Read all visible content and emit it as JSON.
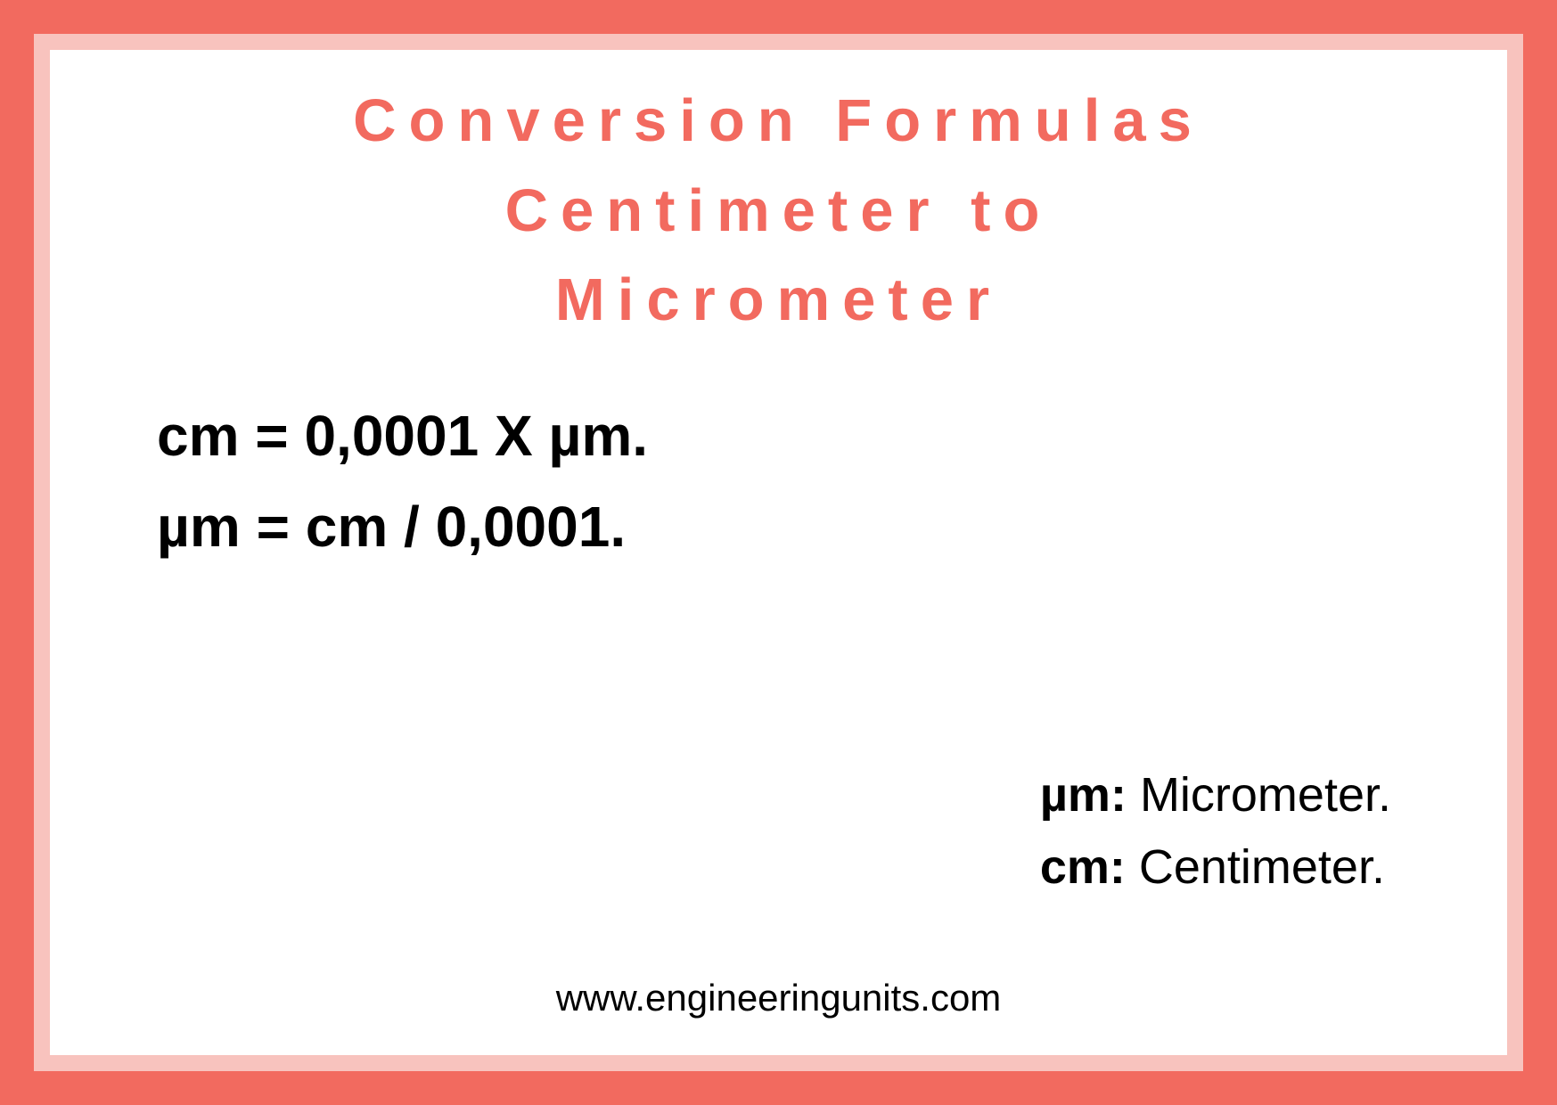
{
  "colors": {
    "outer_border": "#f26a5f",
    "inner_border": "#f8c3be",
    "background": "#ffffff",
    "title_color": "#f26a5f",
    "text_color": "#000000"
  },
  "title": {
    "line1": "Conversion Formulas",
    "line2": "Centimeter to",
    "line3": "Micrometer",
    "fontsize": 67,
    "letter_spacing": 14,
    "font_weight": 700
  },
  "formulas": {
    "line1": "cm = 0,0001 X µm.",
    "line2": "µm =  cm / 0,0001.",
    "fontsize": 64,
    "font_weight": 700
  },
  "legend": {
    "item1_symbol": "µm:",
    "item1_text": " Micrometer.",
    "item2_symbol": "cm:",
    "item2_text": " Centimeter.",
    "fontsize": 54
  },
  "footer": {
    "text": "www.engineeringunits.com",
    "fontsize": 42
  }
}
